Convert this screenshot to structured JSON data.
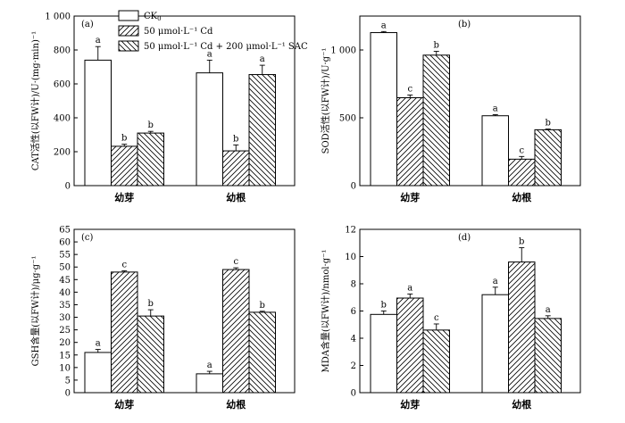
{
  "legend": {
    "ck": "CK",
    "ck_sub": "0",
    "cd": "50 μmol·L⁻¹ Cd",
    "sac": "50 μmol·L⁻¹ Cd + 200 μmol·L⁻¹ SAC"
  },
  "chart_data": [
    {
      "panel": "(a)",
      "type": "bar",
      "categories": [
        "幼芽",
        "幼根"
      ],
      "ylabel": "CAT活性(以FW计)/U·(mg·min)⁻¹",
      "ylim": [
        0,
        1000
      ],
      "yticks": [
        0,
        200,
        400,
        600,
        800,
        1000
      ],
      "ytick_labels": [
        "0",
        "200",
        "400",
        "600",
        "800",
        "1 000"
      ],
      "legend_position": "top-right",
      "series": [
        {
          "key": "ck",
          "pattern": "none",
          "values": [
            740,
            665
          ],
          "errors": [
            80,
            75
          ],
          "letters": [
            "a",
            "a"
          ]
        },
        {
          "key": "cd",
          "pattern": "hatch-forward",
          "values": [
            232,
            205
          ],
          "errors": [
            12,
            35
          ],
          "letters": [
            "b",
            "b"
          ]
        },
        {
          "key": "sac",
          "pattern": "hatch-back",
          "values": [
            310,
            655
          ],
          "errors": [
            10,
            55
          ],
          "letters": [
            "b",
            "a"
          ]
        }
      ]
    },
    {
      "panel": "(b)",
      "type": "bar",
      "categories": [
        "幼芽",
        "幼根"
      ],
      "ylabel": "SOD活性(以FW计)/U·g⁻¹",
      "ylim": [
        0,
        1250
      ],
      "yticks": [
        0,
        500,
        1000
      ],
      "ytick_labels": [
        "0",
        "500",
        "1 000"
      ],
      "series": [
        {
          "key": "ck",
          "pattern": "none",
          "values": [
            1128,
            515
          ],
          "errors": [
            8,
            8
          ],
          "letters": [
            "a",
            "a"
          ]
        },
        {
          "key": "cd",
          "pattern": "hatch-forward",
          "values": [
            648,
            195
          ],
          "errors": [
            20,
            20
          ],
          "letters": [
            "c",
            "c"
          ]
        },
        {
          "key": "sac",
          "pattern": "hatch-back",
          "values": [
            962,
            412
          ],
          "errors": [
            28,
            5
          ],
          "letters": [
            "b",
            "b"
          ]
        }
      ]
    },
    {
      "panel": "(c)",
      "type": "bar",
      "categories": [
        "幼芽",
        "幼根"
      ],
      "ylabel": "GSH含量(以FW计)/μg·g⁻¹",
      "ylim": [
        0,
        65
      ],
      "yticks": [
        0,
        5,
        10,
        15,
        20,
        25,
        30,
        35,
        40,
        45,
        50,
        55,
        60,
        65
      ],
      "ytick_labels": [
        "0",
        "5",
        "10",
        "15",
        "20",
        "25",
        "30",
        "35",
        "40",
        "45",
        "50",
        "55",
        "60",
        "65"
      ],
      "series": [
        {
          "key": "ck",
          "pattern": "none",
          "values": [
            16,
            7.5
          ],
          "errors": [
            1.2,
            1.0
          ],
          "letters": [
            "a",
            "a"
          ]
        },
        {
          "key": "cd",
          "pattern": "hatch-forward",
          "values": [
            48,
            49
          ],
          "errors": [
            0.5,
            0.7
          ],
          "letters": [
            "c",
            "c"
          ]
        },
        {
          "key": "sac",
          "pattern": "hatch-back",
          "values": [
            30.5,
            32
          ],
          "errors": [
            2.5,
            0.4
          ],
          "letters": [
            "b",
            "b"
          ]
        }
      ]
    },
    {
      "panel": "(d)",
      "type": "bar",
      "categories": [
        "幼芽",
        "幼根"
      ],
      "ylabel": "MDA含量(以FW计)/nmol·g⁻¹",
      "ylim": [
        0,
        12
      ],
      "yticks": [
        0,
        2,
        4,
        6,
        8,
        10,
        12
      ],
      "ytick_labels": [
        "0",
        "2",
        "4",
        "6",
        "8",
        "10",
        "12"
      ],
      "series": [
        {
          "key": "ck",
          "pattern": "none",
          "values": [
            5.75,
            7.2
          ],
          "errors": [
            0.25,
            0.55
          ],
          "letters": [
            "b",
            "a"
          ]
        },
        {
          "key": "cd",
          "pattern": "hatch-forward",
          "values": [
            6.95,
            9.6
          ],
          "errors": [
            0.3,
            1.05
          ],
          "letters": [
            "a",
            "b"
          ]
        },
        {
          "key": "sac",
          "pattern": "hatch-back",
          "values": [
            4.6,
            5.45
          ],
          "errors": [
            0.45,
            0.2
          ],
          "letters": [
            "c",
            "a"
          ]
        }
      ]
    }
  ]
}
